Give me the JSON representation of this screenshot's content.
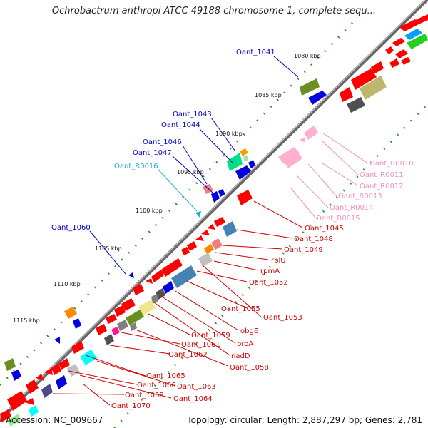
{
  "title": "Ochrobactrum anthropi ATCC 49188 chromosome 1, complete sequ...",
  "footer": {
    "accession": "Accession: NC_009667",
    "topology": "Topology: circular; Length: 2,887,297 bp; Genes: 2,781"
  },
  "colors": {
    "backbone": "#808080",
    "tick_dots": "#2a8a2a",
    "label_outer": "#0000c8",
    "label_rna": "#1ab0d8",
    "label_inner": "#d00000",
    "label_trna": "#ef8fb8"
  },
  "ticks": [
    {
      "kbp": 1080,
      "label": "1080 kbp"
    },
    {
      "kbp": 1085,
      "label": "1085 kbp"
    },
    {
      "kbp": 1090,
      "label": "1090 kbp"
    },
    {
      "kbp": 1095,
      "label": "1095 kbp"
    },
    {
      "kbp": 1100,
      "label": "1100 kbp"
    },
    {
      "kbp": 1105,
      "label": "1105 kbp"
    },
    {
      "kbp": 1110,
      "label": "1110 kbp"
    },
    {
      "kbp": 1115,
      "label": "1115 kbp"
    }
  ],
  "labels_outer": [
    {
      "name": "Oant_1041",
      "type": "cds"
    },
    {
      "name": "Oant_1043",
      "type": "cds"
    },
    {
      "name": "Oant_1044",
      "type": "cds"
    },
    {
      "name": "Oant_1046",
      "type": "cds"
    },
    {
      "name": "Oant_1047",
      "type": "cds"
    },
    {
      "name": "Oant_R0016",
      "type": "rna"
    },
    {
      "name": "Oant_1060",
      "type": "cds"
    }
  ],
  "labels_trna": [
    "Oant_R0010",
    "Oant_R0011",
    "Oant_R0012",
    "Oant_R0013",
    "Oant_R0014",
    "Oant_R0015"
  ],
  "labels_inner": [
    "Oant_1045",
    "Oant_1048",
    "Oant_1049",
    "rplU",
    "rpmA",
    "Oant_1052",
    "Oant_1055",
    "Oant_1053",
    "obgE",
    "Oant_1059",
    "proA",
    "Oant_1061",
    "nadD",
    "Oant_1062",
    "Oant_1058",
    "Oant_1065",
    "Oant_1066",
    "Oant_1063",
    "Oant_1068",
    "Oant_1064",
    "Oant_1070"
  ]
}
